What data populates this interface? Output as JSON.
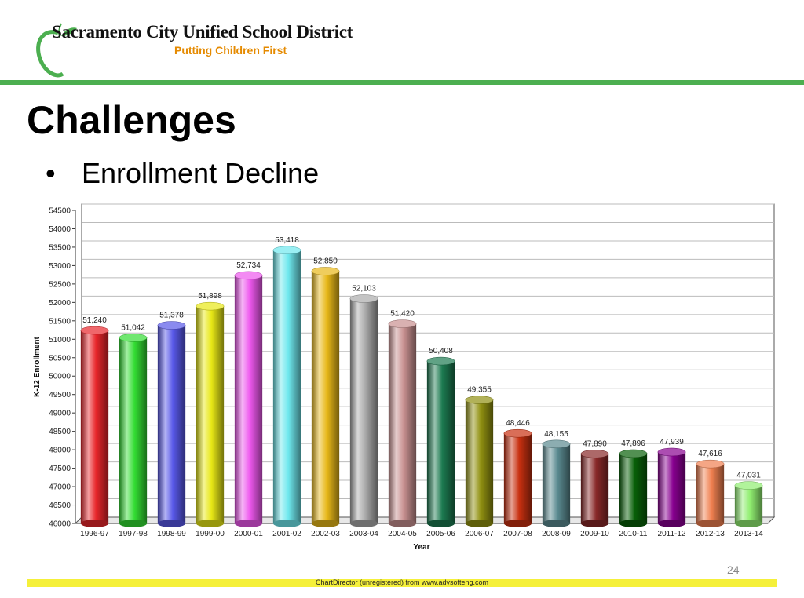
{
  "header": {
    "logo_icon": "apple-icon",
    "org_name": "Sacramento City Unified School District",
    "tagline": "Putting Children First"
  },
  "slide": {
    "title": "Challenges",
    "bullet": "Enrollment Decline",
    "page_number": "24"
  },
  "footer": {
    "watermark": "ChartDirector (unregistered) from www.advsofteng.com"
  },
  "chart_data": {
    "type": "bar",
    "title": "",
    "xlabel": "Year",
    "ylabel": "K-12 Enrollment",
    "ylim": [
      46000,
      54500
    ],
    "ytick_step": 500,
    "grid": true,
    "legend": "none",
    "categories": [
      "1996-97",
      "1997-98",
      "1998-99",
      "1999-00",
      "2000-01",
      "2001-02",
      "2002-03",
      "2003-04",
      "2004-05",
      "2005-06",
      "2006-07",
      "2007-08",
      "2008-09",
      "2009-10",
      "2010-11",
      "2011-12",
      "2012-13",
      "2013-14"
    ],
    "values": [
      51240,
      51042,
      51378,
      51898,
      52734,
      53418,
      52850,
      52103,
      51420,
      50408,
      49355,
      48446,
      48155,
      47890,
      47896,
      47939,
      47616,
      47031
    ],
    "value_labels": [
      "51,240",
      "51,042",
      "51,378",
      "51,898",
      "52,734",
      "53,418",
      "52,850",
      "52,103",
      "51,420",
      "50,408",
      "49,355",
      "48,446",
      "48,155",
      "47,890",
      "47,896",
      "47,939",
      "47,616",
      "47,031"
    ],
    "colors": [
      "#e8262b",
      "#33dd33",
      "#5858e8",
      "#e8e816",
      "#ee58ee",
      "#6ee8ee",
      "#e8b818",
      "#aaaaaa",
      "#c89090",
      "#1c7a50",
      "#909010",
      "#c83010",
      "#5a8a90",
      "#882828",
      "#086008",
      "#880090",
      "#f08050",
      "#90ee70"
    ]
  }
}
